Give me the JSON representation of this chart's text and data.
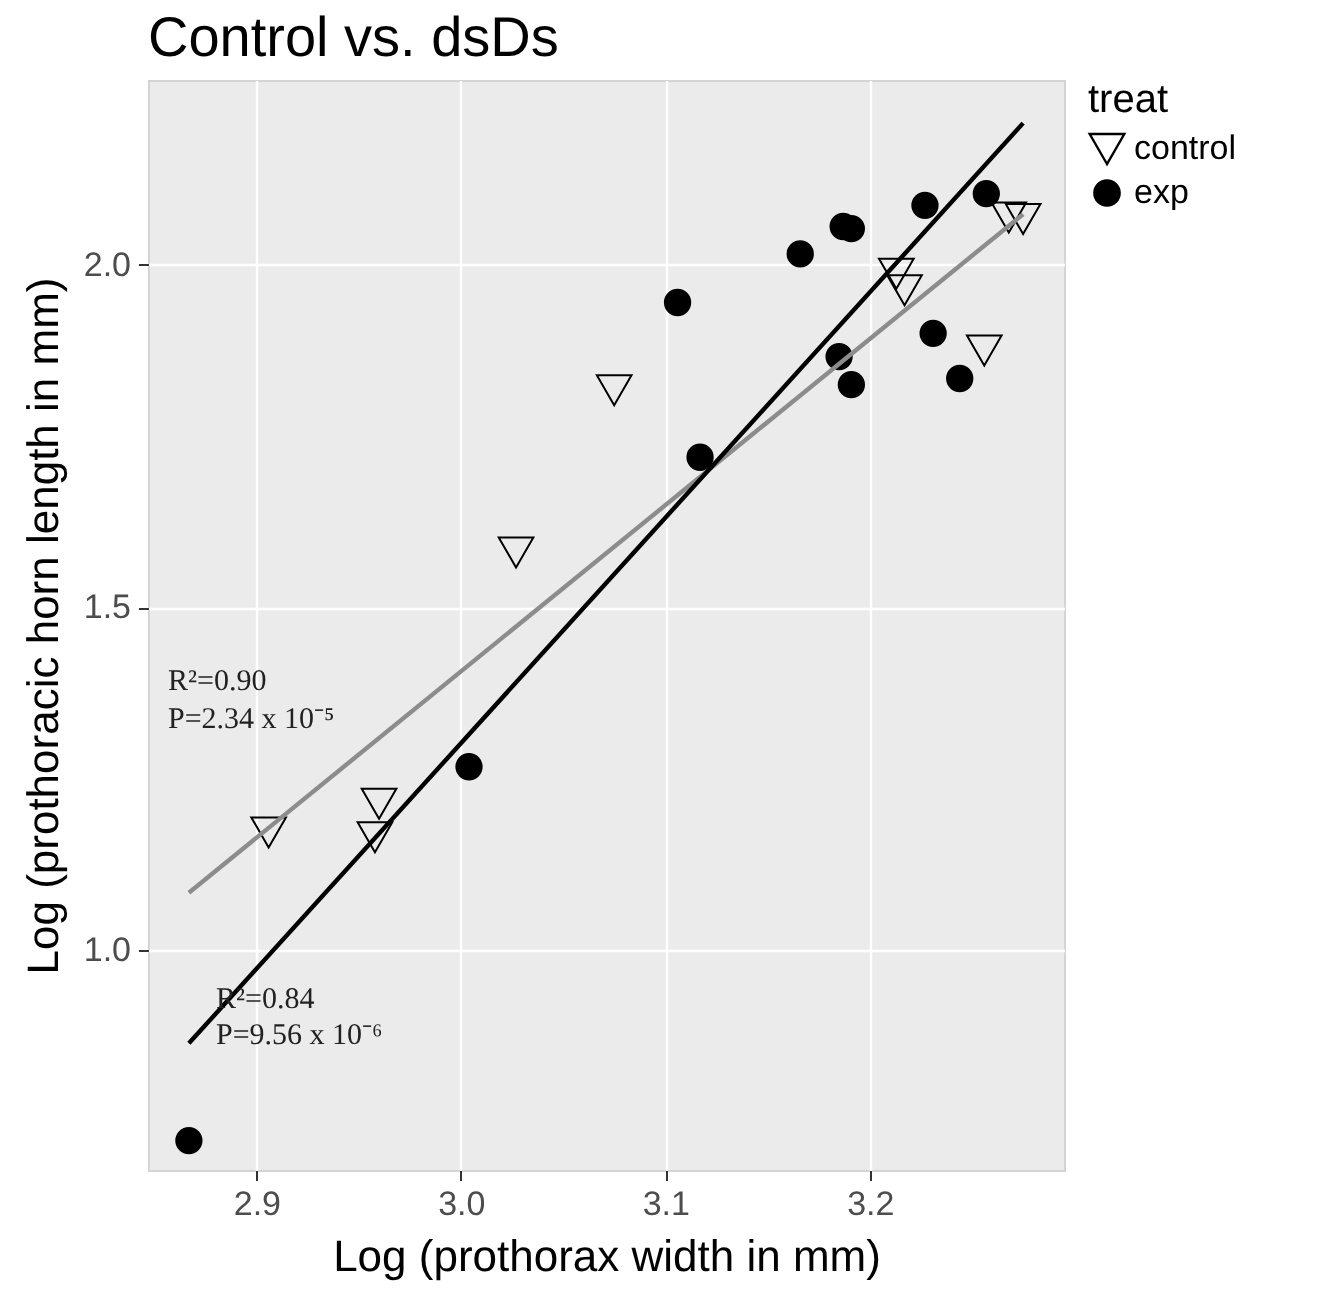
{
  "chart_data": {
    "type": "scatter",
    "title": "Control vs. dsDs",
    "xlabel": "Log (prothorax width in mm)",
    "ylabel": "Log (prothoracic horn length in mm)",
    "legend_title": "treat",
    "legend": "right",
    "grid": true,
    "xlim": [
      2.847,
      3.295
    ],
    "ylim": [
      0.678,
      2.27
    ],
    "xticks": [
      {
        "value": 2.9,
        "label": "2.9"
      },
      {
        "value": 3,
        "label": "3.0"
      },
      {
        "value": 3.1,
        "label": "3.1"
      },
      {
        "value": 3.2,
        "label": "3.2"
      }
    ],
    "yticks": [
      {
        "value": 1,
        "label": "1.0"
      },
      {
        "value": 1.5,
        "label": "1.5"
      },
      {
        "value": 2,
        "label": "2.0"
      }
    ],
    "series": [
      {
        "name": "control",
        "color": "#000000",
        "marker": "triangle",
        "x": [
          2.906,
          2.958,
          2.96,
          3.027,
          3.075,
          3.213,
          3.217,
          3.256,
          3.268,
          3.275
        ],
        "values": [
          1.171,
          1.164,
          1.213,
          1.58,
          1.817,
          1.987,
          1.963,
          1.875,
          2.069,
          2.067
        ]
      },
      {
        "name": "exp",
        "color": "#000000",
        "marker": "circle",
        "x": [
          2.867,
          3.004,
          3.106,
          3.117,
          3.166,
          3.185,
          3.187,
          3.191,
          3.191,
          3.227,
          3.231,
          3.244,
          3.257
        ],
        "values": [
          0.721,
          1.267,
          1.945,
          1.719,
          2.016,
          1.866,
          2.056,
          2.053,
          1.825,
          2.087,
          1.9,
          1.834,
          2.104
        ]
      },
      {
        "type": "line",
        "color": "#8c8c8c",
        "x": [
          2.867,
          3.275
        ],
        "values": [
          1.083,
          2.074
        ]
      },
      {
        "type": "line",
        "color": "#000000",
        "x": [
          2.867,
          3.275
        ],
        "values": [
          0.863,
          2.207
        ]
      }
    ],
    "annotations": [
      "R²=0.90",
      "P=2.34 x 10⁻⁵",
      "R²=0.84",
      "P=9.56 x 10⁻⁶"
    ]
  }
}
